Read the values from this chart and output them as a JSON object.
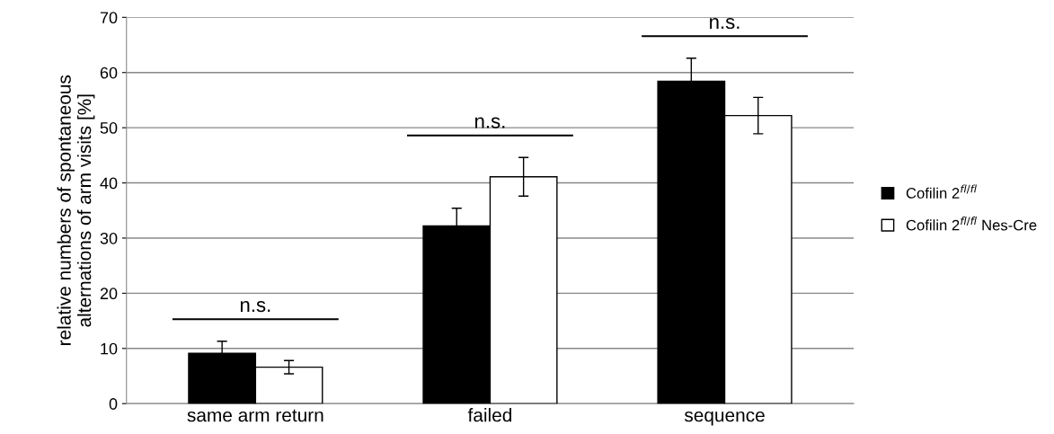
{
  "chart_data": {
    "type": "bar",
    "ylabel": "relative numbers of spontaneous\nalternations of arm visits [%]",
    "categories": [
      "same arm return",
      "failed",
      "sequence"
    ],
    "series": [
      {
        "name": "Cofilin 2$^{fl/fl}$",
        "color": "#000000",
        "values": [
          9.1,
          32.2,
          58.4
        ],
        "errors": [
          2.2,
          3.2,
          4.2
        ]
      },
      {
        "name": "Cofilin 2$^{fl/fl}$ Nes-Cre",
        "color": "#ffffff",
        "values": [
          6.6,
          41.1,
          52.2
        ],
        "errors": [
          1.2,
          3.5,
          3.3
        ]
      }
    ],
    "ylim": [
      0,
      70
    ],
    "yticks": [
      0,
      10,
      20,
      30,
      40,
      50,
      60,
      70
    ],
    "grid": "y",
    "legend": "right",
    "annotations": [
      "n.s.",
      "n.s.",
      "n.s."
    ]
  }
}
